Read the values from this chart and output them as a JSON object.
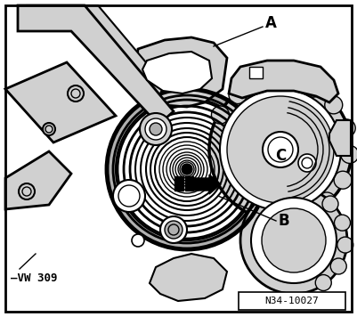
{
  "bg_color": "#ffffff",
  "border_color": "#000000",
  "line_color": "#000000",
  "gray_light": "#d0d0d0",
  "gray_mid": "#b0b0b0",
  "label_A": "A",
  "label_B": "B",
  "label_C": "C",
  "label_tool": "VW 309",
  "label_ref": "N34-10027",
  "figsize": [
    4.01,
    3.56
  ],
  "dpi": 100
}
